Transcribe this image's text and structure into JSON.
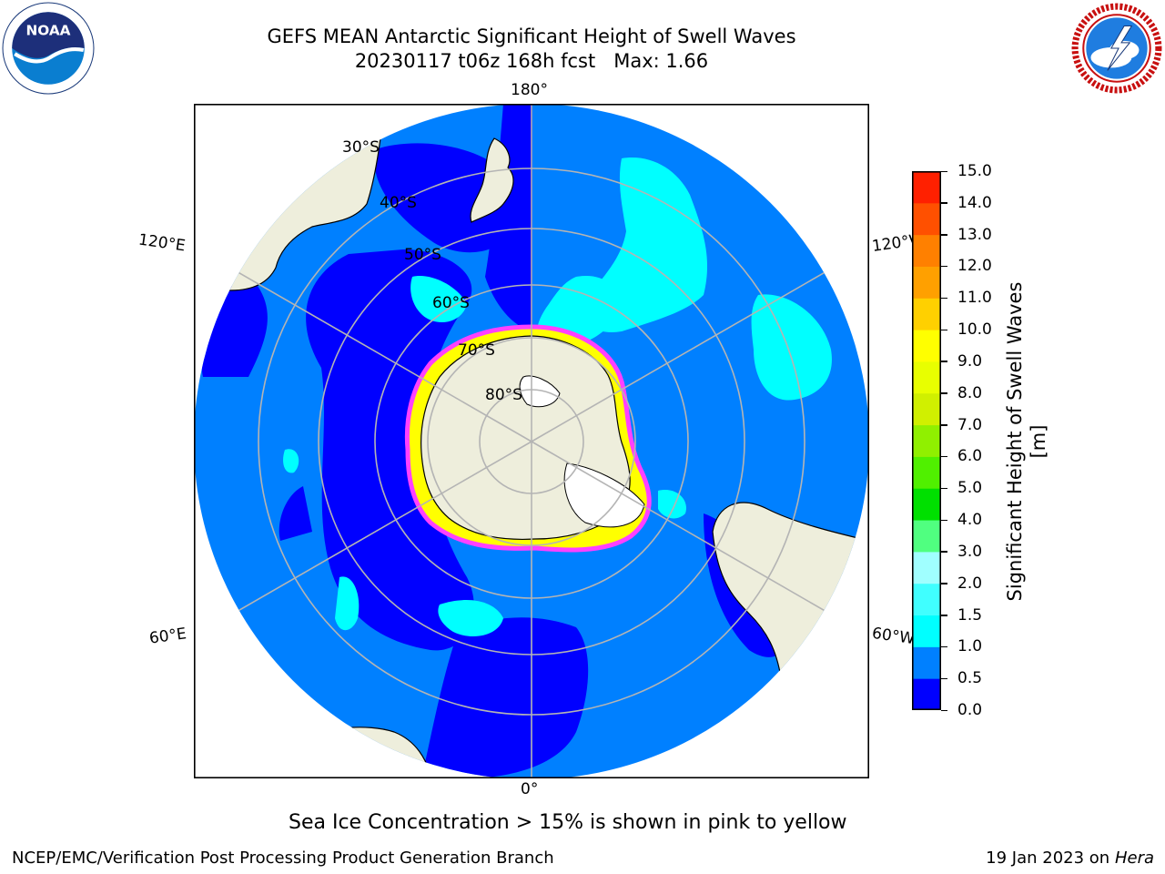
{
  "title": {
    "line1": "GEFS MEAN Antarctic Significant Height of Swell Waves",
    "line2": "20230117 t06z 168h fcst   Max: 1.66"
  },
  "logos": {
    "left": {
      "icon": "noaa-logo",
      "text": "NOAA",
      "ring_text": "NATIONAL OCEANIC AND ATMOSPHERIC ADMINISTRATION · U.S. DEPARTMENT OF COMMERCE"
    },
    "right": {
      "icon": "nws-logo",
      "ring_text": "NATIONAL WEATHER SERVICE"
    }
  },
  "map": {
    "projection": "south-polar-stereographic",
    "longitude_labels": {
      "top": "180°",
      "bottom": "0°",
      "upper_left": "120°E",
      "lower_left": "60°E",
      "upper_right": "120°W",
      "lower_right": "60°W"
    },
    "latitude_labels": [
      "30°S",
      "40°S",
      "50°S",
      "60°S",
      "70°S",
      "80°S"
    ],
    "colors": {
      "ocean_dark": "#0000ff",
      "ocean_mid": "#0080ff",
      "ocean_light": "#00ffff",
      "land": "#eeeedc",
      "ice_pink": "#ff40ff",
      "ice_yellow": "#ffff00",
      "graticule": "#b4b4b4"
    }
  },
  "colorbar": {
    "label": "Significant Height of Swell Waves [m]",
    "ticks": [
      "0.0",
      "0.5",
      "1.0",
      "1.5",
      "2.0",
      "3.0",
      "4.0",
      "5.0",
      "6.0",
      "7.0",
      "8.0",
      "9.0",
      "10.0",
      "11.0",
      "12.0",
      "13.0",
      "14.0",
      "15.0"
    ],
    "colors": [
      "#0000ff",
      "#0080ff",
      "#00ffff",
      "#40ffff",
      "#a0ffff",
      "#50ff80",
      "#00e000",
      "#50f000",
      "#90f000",
      "#d0f000",
      "#e8ff00",
      "#ffff00",
      "#ffd000",
      "#ffa000",
      "#ff8000",
      "#ff5000",
      "#ff2000"
    ]
  },
  "note": "Sea Ice Concentration > 15% is shown in pink to yellow",
  "footer": {
    "left": "NCEP/EMC/Verification Post Processing Product Generation Branch",
    "right_prefix": "19 Jan 2023 on ",
    "right_italic": "Hera"
  }
}
